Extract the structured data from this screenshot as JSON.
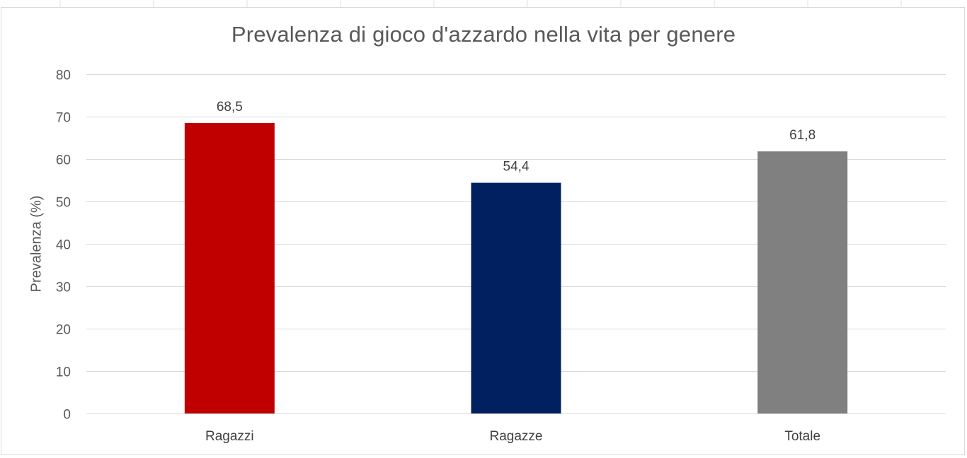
{
  "chart_data": {
    "type": "bar",
    "title": "Prevalenza di gioco d'azzardo nella vita per genere",
    "xlabel": "",
    "ylabel": "Prevalenza (%)",
    "categories": [
      "Ragazzi",
      "Ragazze",
      "Totale"
    ],
    "values": [
      68.5,
      54.4,
      61.8
    ],
    "value_labels": [
      "68,5",
      "54,4",
      "61,8"
    ],
    "bar_colors": [
      "#c00000",
      "#002060",
      "#808080"
    ],
    "ylim": [
      0,
      80
    ],
    "yticks": [
      0,
      10,
      20,
      30,
      40,
      50,
      60,
      70,
      80
    ],
    "ytick_labels": [
      "0",
      "10",
      "20",
      "30",
      "40",
      "50",
      "60",
      "70",
      "80"
    ],
    "grid": true,
    "legend": "none"
  },
  "colors": {
    "gridline": "#d9d9d9",
    "axis_text": "#595959",
    "label_text": "#404040"
  }
}
